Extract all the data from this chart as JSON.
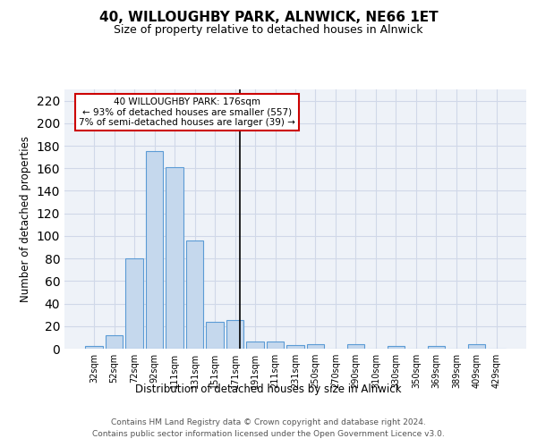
{
  "title1": "40, WILLOUGHBY PARK, ALNWICK, NE66 1ET",
  "title2": "Size of property relative to detached houses in Alnwick",
  "xlabel": "Distribution of detached houses by size in Alnwick",
  "ylabel": "Number of detached properties",
  "categories": [
    "32sqm",
    "52sqm",
    "72sqm",
    "92sqm",
    "111sqm",
    "131sqm",
    "151sqm",
    "171sqm",
    "191sqm",
    "211sqm",
    "231sqm",
    "250sqm",
    "270sqm",
    "290sqm",
    "310sqm",
    "330sqm",
    "350sqm",
    "369sqm",
    "389sqm",
    "409sqm",
    "429sqm"
  ],
  "values": [
    2,
    12,
    80,
    175,
    161,
    96,
    24,
    25,
    6,
    6,
    3,
    4,
    0,
    4,
    0,
    2,
    0,
    2,
    0,
    4,
    0
  ],
  "bar_color": "#c5d8ed",
  "bar_edge_color": "#5b9bd5",
  "annotation_line1": "40 WILLOUGHBY PARK: 176sqm",
  "annotation_line2": "← 93% of detached houses are smaller (557)",
  "annotation_line3": "7% of semi-detached houses are larger (39) →",
  "annotation_box_color": "#ffffff",
  "annotation_box_edge": "#cc0000",
  "vline_color": "#000000",
  "grid_color": "#d0d8e8",
  "bg_color": "#eef2f8",
  "ylim": [
    0,
    230
  ],
  "yticks": [
    0,
    20,
    40,
    60,
    80,
    100,
    120,
    140,
    160,
    180,
    200,
    220
  ],
  "footer1": "Contains HM Land Registry data © Crown copyright and database right 2024.",
  "footer2": "Contains public sector information licensed under the Open Government Licence v3.0.",
  "vline_x": 7.25
}
